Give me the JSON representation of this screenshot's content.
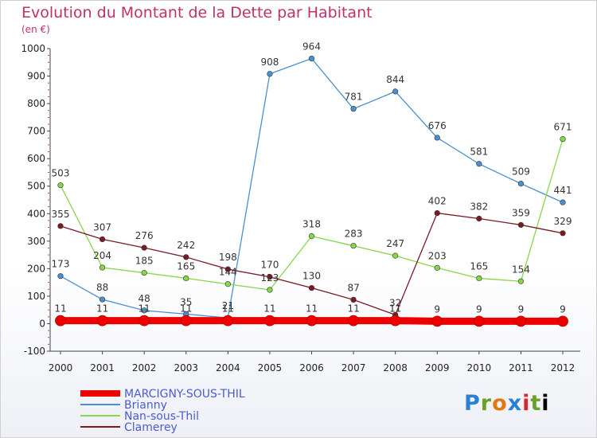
{
  "header": {
    "title": "Evolution du Montant de la Dette par Habitant",
    "subtitle": "(en €)"
  },
  "logo": {
    "text": "Proxiti"
  },
  "chart_data": {
    "type": "line",
    "title": "Evolution du Montant de la Dette par Habitant",
    "subtitle": "(en €)",
    "x": [
      "2000",
      "2001",
      "2002",
      "2003",
      "2004",
      "2005",
      "2006",
      "2007",
      "2008",
      "2009",
      "2010",
      "2011",
      "2012"
    ],
    "yticks": [
      -100,
      0,
      100,
      200,
      300,
      400,
      500,
      600,
      700,
      800,
      900,
      1000
    ],
    "ylim": [
      -100,
      1000
    ],
    "grid": false,
    "legend_position": "bottom-left",
    "series": [
      {
        "name": "MARCIGNY-SOUS-THIL",
        "color": "#ee0000",
        "values": [
          11,
          11,
          11,
          11,
          11,
          11,
          11,
          11,
          11,
          9,
          9,
          9,
          9
        ],
        "labels": [
          "11",
          "11",
          "11",
          "11",
          "11",
          "11",
          "11",
          "11",
          "11",
          "9",
          "9",
          "9",
          "9"
        ]
      },
      {
        "name": "Brianny",
        "color": "#4a90cf",
        "values": [
          173,
          88,
          48,
          35,
          21,
          908,
          964,
          781,
          844,
          676,
          581,
          509,
          441
        ],
        "labels": [
          "173",
          "88",
          "48",
          "35",
          "21",
          "908",
          "964",
          "781",
          "844",
          "676",
          "581",
          "509",
          "441"
        ]
      },
      {
        "name": "Nan-sous-Thil",
        "color": "#86d84a",
        "values": [
          503,
          204,
          185,
          165,
          144,
          123,
          318,
          283,
          247,
          203,
          165,
          154,
          671
        ],
        "labels": [
          "503",
          "204",
          "185",
          "165",
          "144",
          "123",
          "318",
          "283",
          "247",
          "203",
          "165",
          "154",
          "671"
        ]
      },
      {
        "name": "Clamerey",
        "color": "#7a1a22",
        "values": [
          355,
          307,
          276,
          242,
          198,
          170,
          130,
          87,
          32,
          402,
          382,
          359,
          329
        ],
        "labels": [
          "355",
          "307",
          "276",
          "242",
          "198",
          "170",
          "130",
          "87",
          "32",
          "402",
          "382",
          "359",
          "329"
        ]
      }
    ]
  }
}
